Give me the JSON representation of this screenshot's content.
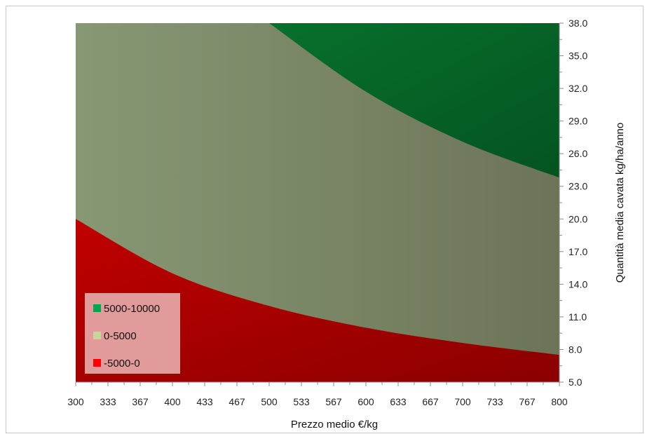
{
  "chart_data": {
    "type": "area",
    "xlabel": "Prezzo medio €/kg",
    "ylabel": "Quantità media cavata kg/ha/anno",
    "x_ticks": [
      "300",
      "333",
      "367",
      "400",
      "433",
      "467",
      "500",
      "533",
      "567",
      "600",
      "633",
      "667",
      "700",
      "733",
      "767",
      "800"
    ],
    "y_ticks": [
      "5.0",
      "8.0",
      "11.0",
      "14.0",
      "17.0",
      "20.0",
      "23.0",
      "26.0",
      "29.0",
      "32.0",
      "35.0",
      "38.0"
    ],
    "xlim": [
      300,
      800
    ],
    "ylim": [
      5,
      38
    ],
    "y_axis_position": "right",
    "grid": false,
    "legend_position": "bottom-left",
    "boundaries": [
      {
        "value": 0,
        "x": [
          300,
          400,
          500,
          600,
          700,
          800
        ],
        "y": [
          20.0,
          15.0,
          12.0,
          10.0,
          8.6,
          7.5
        ]
      },
      {
        "value": 5000,
        "x": [
          500,
          600,
          700,
          800
        ],
        "y": [
          38.0,
          31.7,
          27.1,
          23.8
        ]
      }
    ],
    "series": [
      {
        "name": "5000-10000",
        "color": "#00a650"
      },
      {
        "name": "0-5000",
        "color": "#c4d79b"
      },
      {
        "name": "-5000-0",
        "color": "#ff0000"
      }
    ],
    "region_colors": {
      "low_start": "#c00000",
      "low_end": "#8b0000",
      "mid_start": "#879874",
      "mid_end": "#6c7457",
      "high_start": "#08702c",
      "high_end": "#035420"
    },
    "legend_box_color": "#e5a3a3"
  }
}
